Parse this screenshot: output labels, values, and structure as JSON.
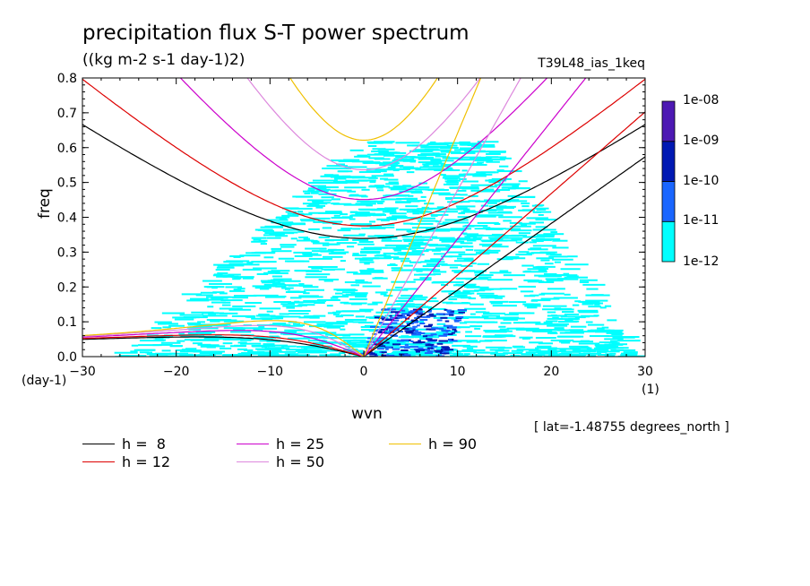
{
  "title": "precipitation flux S-T power spectrum",
  "units": "((kg m-2 s-1 day-1)2)",
  "dataset": "T39L48_ias_1keq",
  "lat_note": "[ lat=-1.48755 degrees_north ]",
  "x_unit_left": "(day-1)",
  "x_unit_right": "(1)",
  "chart_data": {
    "type": "heatmap",
    "xlabel": "wvn",
    "ylabel": "freq",
    "xlim": [
      -30,
      30
    ],
    "ylim": [
      0,
      0.8
    ],
    "x_ticks": [
      "-30",
      "-20",
      "-10",
      "0",
      "10",
      "20",
      "30"
    ],
    "y_ticks": [
      "0.0",
      "0.1",
      "0.2",
      "0.3",
      "0.4",
      "0.5",
      "0.6",
      "0.7",
      "0.8"
    ],
    "colorbar": {
      "levels": [
        "1e-12",
        "1e-11",
        "1e-10",
        "1e-09",
        "1e-08"
      ],
      "colors": [
        "#00ffff",
        "#1a66ff",
        "#0019b3",
        "#4d19b3"
      ]
    },
    "series": [
      {
        "name": "h =  8",
        "value": 8,
        "color": "#000000"
      },
      {
        "name": "h = 12",
        "value": 12,
        "color": "#dd0000"
      },
      {
        "name": "h = 25",
        "value": 25,
        "color": "#cc00cc"
      },
      {
        "name": "h = 50",
        "value": 50,
        "color": "#dd88dd"
      },
      {
        "name": "h = 90",
        "value": 90,
        "color": "#f0c000"
      }
    ]
  }
}
